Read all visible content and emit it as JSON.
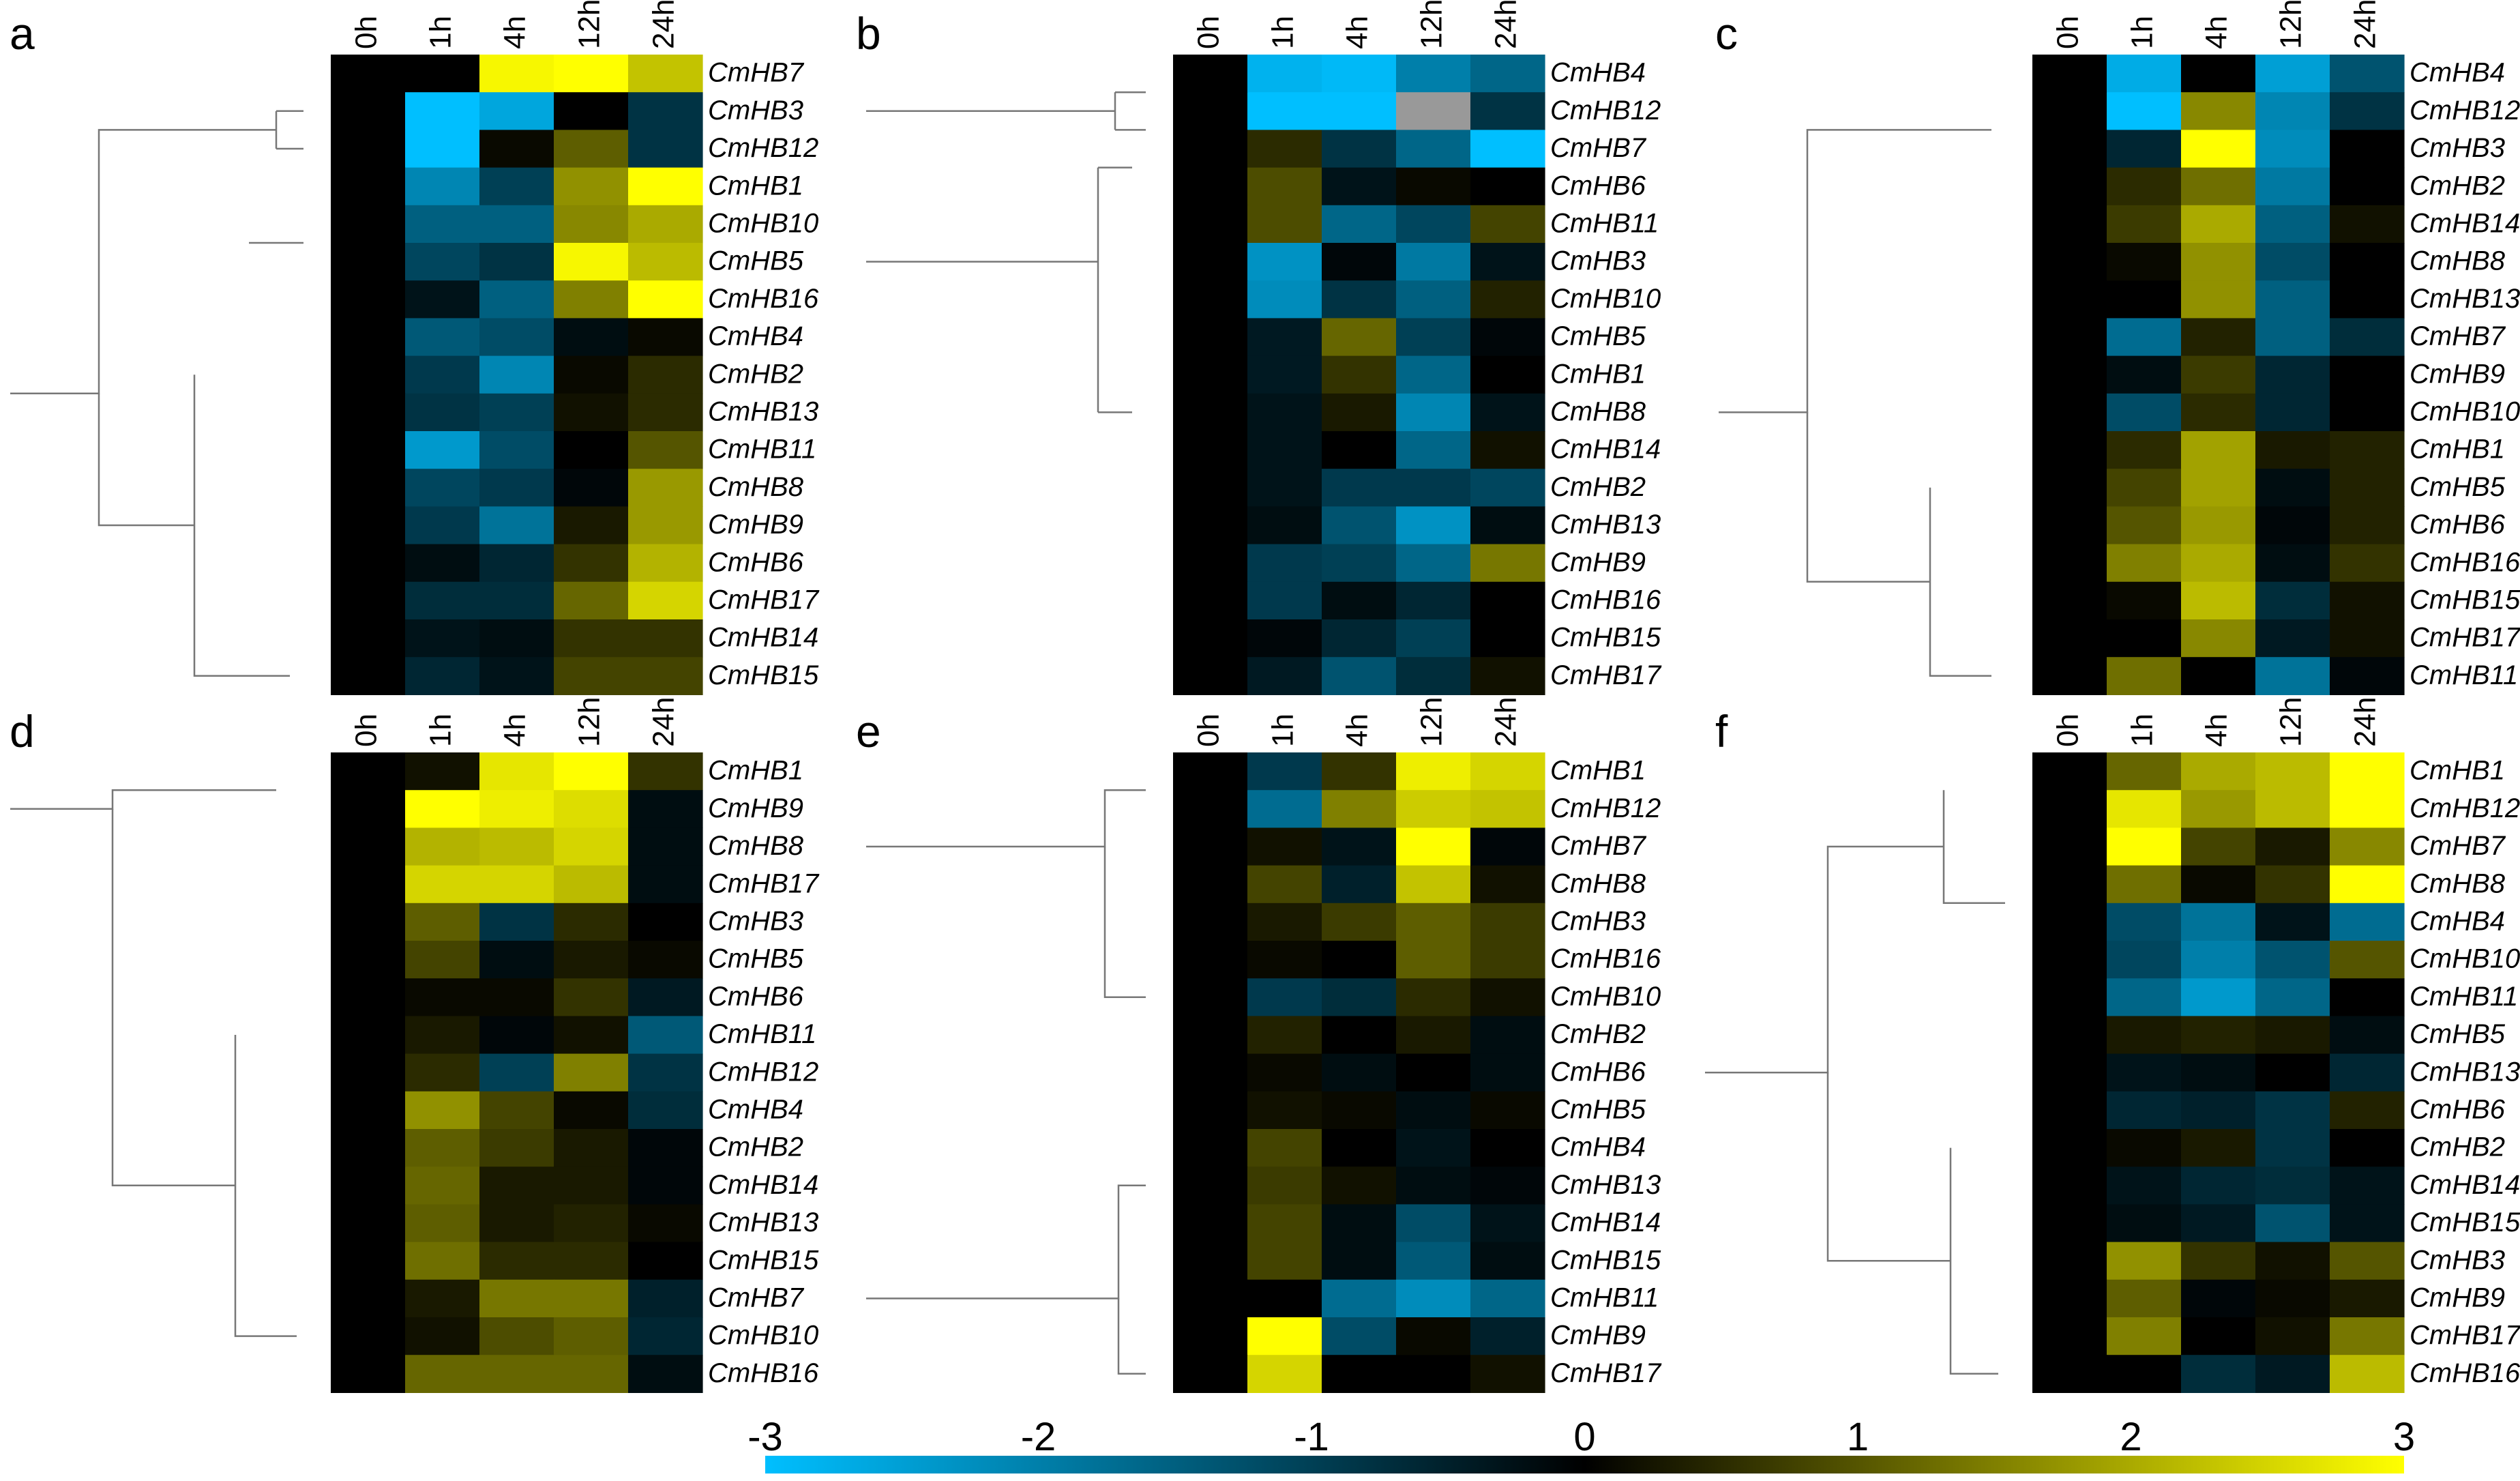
{
  "chart_data": [
    {
      "type": "heatmap",
      "panel_label": "a",
      "columns": [
        "0h",
        "1h",
        "4h",
        "12h",
        "24h"
      ],
      "rows": [
        {
          "gene": "CmHB7",
          "values": [
            0,
            0.0,
            2.9,
            3.0,
            2.3
          ]
        },
        {
          "gene": "CmHB3",
          "values": [
            0,
            -3.0,
            -2.6,
            0.0,
            -0.8
          ]
        },
        {
          "gene": "CmHB12",
          "values": [
            0,
            -3.0,
            0.1,
            1.1,
            -0.8
          ]
        },
        {
          "gene": "CmHB1",
          "values": [
            0,
            -2.1,
            -1.0,
            1.7,
            3.0
          ]
        },
        {
          "gene": "CmHB10",
          "values": [
            0,
            -1.5,
            -1.5,
            1.6,
            2.0
          ]
        },
        {
          "gene": "CmHB5",
          "values": [
            0,
            -1.1,
            -0.8,
            2.9,
            2.2
          ]
        },
        {
          "gene": "CmHB16",
          "values": [
            0,
            -0.3,
            -1.5,
            1.5,
            3.0
          ]
        },
        {
          "gene": "CmHB4",
          "values": [
            0,
            -1.4,
            -1.2,
            -0.2,
            0.1
          ]
        },
        {
          "gene": "CmHB2",
          "values": [
            0,
            -0.9,
            -2.1,
            0.1,
            0.5
          ]
        },
        {
          "gene": "CmHB13",
          "values": [
            0,
            -0.8,
            -1.0,
            0.2,
            0.5
          ]
        },
        {
          "gene": "CmHB11",
          "values": [
            0,
            -2.4,
            -1.2,
            0.0,
            1.0
          ]
        },
        {
          "gene": "CmHB8",
          "values": [
            0,
            -1.1,
            -0.9,
            -0.1,
            1.8
          ]
        },
        {
          "gene": "CmHB9",
          "values": [
            0,
            -0.9,
            -1.8,
            0.3,
            1.8
          ]
        },
        {
          "gene": "CmHB6",
          "values": [
            0,
            -0.2,
            -0.6,
            0.6,
            2.1
          ]
        },
        {
          "gene": "CmHB17",
          "values": [
            0,
            -0.7,
            -0.7,
            1.2,
            2.5
          ]
        },
        {
          "gene": "CmHB14",
          "values": [
            0,
            -0.3,
            -0.2,
            0.6,
            0.6
          ]
        },
        {
          "gene": "CmHB15",
          "values": [
            0,
            -0.6,
            -0.3,
            0.8,
            0.8
          ]
        }
      ]
    },
    {
      "type": "heatmap",
      "panel_label": "b",
      "columns": [
        "0h",
        "1h",
        "4h",
        "12h",
        "24h"
      ],
      "rows": [
        {
          "gene": "CmHB4",
          "values": [
            0,
            -2.8,
            -2.9,
            -2.0,
            -1.6
          ]
        },
        {
          "gene": "CmHB12",
          "values": [
            0,
            -3.0,
            -3.0,
            null,
            -0.8
          ]
        },
        {
          "gene": "CmHB7",
          "values": [
            0,
            0.5,
            -0.8,
            -1.6,
            -3.0
          ]
        },
        {
          "gene": "CmHB6",
          "values": [
            0,
            0.9,
            -0.3,
            0.1,
            0.0
          ]
        },
        {
          "gene": "CmHB11",
          "values": [
            0,
            0.9,
            -1.6,
            -1.1,
            0.8
          ]
        },
        {
          "gene": "CmHB3",
          "values": [
            0,
            -2.3,
            -0.1,
            -1.9,
            -0.3
          ]
        },
        {
          "gene": "CmHB10",
          "values": [
            0,
            -2.2,
            -0.8,
            -1.5,
            0.4
          ]
        },
        {
          "gene": "CmHB5",
          "values": [
            0,
            -0.4,
            1.2,
            -1.0,
            -0.1
          ]
        },
        {
          "gene": "CmHB1",
          "values": [
            0,
            -0.4,
            0.6,
            -1.6,
            0.0
          ]
        },
        {
          "gene": "CmHB8",
          "values": [
            0,
            -0.3,
            0.3,
            -2.1,
            -0.3
          ]
        },
        {
          "gene": "CmHB14",
          "values": [
            0,
            -0.3,
            0.0,
            -1.6,
            0.2
          ]
        },
        {
          "gene": "CmHB2",
          "values": [
            0,
            -0.3,
            -0.9,
            -0.9,
            -1.1
          ]
        },
        {
          "gene": "CmHB13",
          "values": [
            0,
            -0.2,
            -1.3,
            -2.3,
            -0.2
          ]
        },
        {
          "gene": "CmHB9",
          "values": [
            0,
            -0.9,
            -1.0,
            -1.6,
            1.4
          ]
        },
        {
          "gene": "CmHB16",
          "values": [
            0,
            -0.9,
            -0.2,
            -0.6,
            0.0
          ]
        },
        {
          "gene": "CmHB15",
          "values": [
            0,
            -0.1,
            -0.6,
            -1.0,
            0.0
          ]
        },
        {
          "gene": "CmHB17",
          "values": [
            0,
            -0.4,
            -1.3,
            -0.7,
            0.2
          ]
        }
      ]
    },
    {
      "type": "heatmap",
      "panel_label": "c",
      "columns": [
        "0h",
        "1h",
        "4h",
        "12h",
        "24h"
      ],
      "rows": [
        {
          "gene": "CmHB4",
          "values": [
            0,
            -2.7,
            0.0,
            -2.5,
            -1.3
          ]
        },
        {
          "gene": "CmHB12",
          "values": [
            0,
            -3.0,
            1.6,
            -2.1,
            -0.8
          ]
        },
        {
          "gene": "CmHB3",
          "values": [
            0,
            -0.6,
            3.0,
            -2.2,
            0.0
          ]
        },
        {
          "gene": "CmHB2",
          "values": [
            0,
            0.5,
            1.3,
            -1.9,
            0.0
          ]
        },
        {
          "gene": "CmHB14",
          "values": [
            0,
            0.7,
            2.0,
            -1.5,
            0.2
          ]
        },
        {
          "gene": "CmHB8",
          "values": [
            0,
            0.1,
            1.7,
            -1.2,
            0.0
          ]
        },
        {
          "gene": "CmHB13",
          "values": [
            0,
            0.0,
            1.7,
            -1.5,
            0.0
          ]
        },
        {
          "gene": "CmHB7",
          "values": [
            0,
            -1.7,
            0.4,
            -1.5,
            -0.7
          ]
        },
        {
          "gene": "CmHB9",
          "values": [
            0,
            -0.2,
            0.7,
            -0.6,
            0.0
          ]
        },
        {
          "gene": "CmHB10",
          "values": [
            0,
            -1.2,
            0.5,
            -0.6,
            0.0
          ]
        },
        {
          "gene": "CmHB1",
          "values": [
            0,
            0.5,
            1.9,
            0.3,
            0.4
          ]
        },
        {
          "gene": "CmHB5",
          "values": [
            0,
            0.8,
            1.9,
            -0.2,
            0.4
          ]
        },
        {
          "gene": "CmHB6",
          "values": [
            0,
            1.0,
            1.8,
            -0.1,
            0.4
          ]
        },
        {
          "gene": "CmHB16",
          "values": [
            0,
            1.5,
            2.0,
            -0.2,
            0.6
          ]
        },
        {
          "gene": "CmHB15",
          "values": [
            0,
            0.1,
            2.2,
            -0.7,
            0.2
          ]
        },
        {
          "gene": "CmHB17",
          "values": [
            0,
            0.0,
            1.6,
            -0.4,
            0.2
          ]
        },
        {
          "gene": "CmHB11",
          "values": [
            0,
            1.3,
            0.0,
            -1.8,
            -0.1
          ]
        }
      ]
    },
    {
      "type": "heatmap",
      "panel_label": "d",
      "columns": [
        "0h",
        "1h",
        "4h",
        "12h",
        "24h"
      ],
      "rows": [
        {
          "gene": "CmHB1",
          "values": [
            0,
            0.2,
            2.7,
            3.0,
            0.6
          ]
        },
        {
          "gene": "CmHB9",
          "values": [
            0,
            3.0,
            2.8,
            2.6,
            -0.2
          ]
        },
        {
          "gene": "CmHB8",
          "values": [
            0,
            2.1,
            2.2,
            2.5,
            -0.2
          ]
        },
        {
          "gene": "CmHB17",
          "values": [
            0,
            2.5,
            2.5,
            2.2,
            -0.2
          ]
        },
        {
          "gene": "CmHB3",
          "values": [
            0,
            1.1,
            -0.8,
            0.5,
            0.0
          ]
        },
        {
          "gene": "CmHB5",
          "values": [
            0,
            0.8,
            -0.2,
            0.3,
            0.1
          ]
        },
        {
          "gene": "CmHB6",
          "values": [
            0,
            0.1,
            0.1,
            0.6,
            -0.4
          ]
        },
        {
          "gene": "CmHB11",
          "values": [
            0,
            0.3,
            -0.1,
            0.2,
            -1.4
          ]
        },
        {
          "gene": "CmHB12",
          "values": [
            0,
            0.5,
            -1.0,
            1.5,
            -0.8
          ]
        },
        {
          "gene": "CmHB4",
          "values": [
            0,
            1.7,
            0.8,
            0.1,
            -0.7
          ]
        },
        {
          "gene": "CmHB2",
          "values": [
            0,
            1.1,
            0.7,
            0.3,
            -0.1
          ]
        },
        {
          "gene": "CmHB14",
          "values": [
            0,
            1.2,
            0.3,
            0.3,
            -0.1
          ]
        },
        {
          "gene": "CmHB13",
          "values": [
            0,
            1.1,
            0.3,
            0.4,
            0.1
          ]
        },
        {
          "gene": "CmHB15",
          "values": [
            0,
            1.3,
            0.5,
            0.5,
            0.0
          ]
        },
        {
          "gene": "CmHB7",
          "values": [
            0,
            0.3,
            1.4,
            1.4,
            -0.5
          ]
        },
        {
          "gene": "CmHB10",
          "values": [
            0,
            0.2,
            0.9,
            1.1,
            -0.6
          ]
        },
        {
          "gene": "CmHB16",
          "values": [
            0,
            1.2,
            1.2,
            1.2,
            -0.2
          ]
        }
      ]
    },
    {
      "type": "heatmap",
      "panel_label": "e",
      "columns": [
        "0h",
        "1h",
        "4h",
        "12h",
        "24h"
      ],
      "rows": [
        {
          "gene": "CmHB1",
          "values": [
            0,
            -0.9,
            0.6,
            2.8,
            2.5
          ]
        },
        {
          "gene": "CmHB12",
          "values": [
            0,
            -1.7,
            1.5,
            2.4,
            2.3
          ]
        },
        {
          "gene": "CmHB7",
          "values": [
            0,
            0.2,
            -0.3,
            3.0,
            -0.1
          ]
        },
        {
          "gene": "CmHB8",
          "values": [
            0,
            0.8,
            -0.5,
            2.3,
            0.2
          ]
        },
        {
          "gene": "CmHB3",
          "values": [
            0,
            0.3,
            0.7,
            1.1,
            0.7
          ]
        },
        {
          "gene": "CmHB16",
          "values": [
            0,
            0.1,
            0.0,
            1.1,
            0.7
          ]
        },
        {
          "gene": "CmHB10",
          "values": [
            0,
            -0.9,
            -0.7,
            0.5,
            0.2
          ]
        },
        {
          "gene": "CmHB2",
          "values": [
            0,
            0.4,
            0.0,
            0.3,
            -0.2
          ]
        },
        {
          "gene": "CmHB6",
          "values": [
            0,
            0.1,
            -0.2,
            0.0,
            -0.2
          ]
        },
        {
          "gene": "CmHB5",
          "values": [
            0,
            0.2,
            0.1,
            -0.2,
            0.1
          ]
        },
        {
          "gene": "CmHB4",
          "values": [
            0,
            0.8,
            0.0,
            -0.3,
            0.0
          ]
        },
        {
          "gene": "CmHB13",
          "values": [
            0,
            0.7,
            0.2,
            -0.2,
            -0.1
          ]
        },
        {
          "gene": "CmHB14",
          "values": [
            0,
            0.8,
            -0.2,
            -1.2,
            -0.3
          ]
        },
        {
          "gene": "CmHB15",
          "values": [
            0,
            0.8,
            -0.2,
            -1.4,
            -0.2
          ]
        },
        {
          "gene": "CmHB11",
          "values": [
            0,
            0.0,
            -1.7,
            -2.2,
            -1.6
          ]
        },
        {
          "gene": "CmHB9",
          "values": [
            0,
            3.0,
            -1.2,
            0.1,
            -0.5
          ]
        },
        {
          "gene": "CmHB17",
          "values": [
            0,
            2.5,
            0.0,
            0.0,
            0.2
          ]
        }
      ]
    },
    {
      "type": "heatmap",
      "panel_label": "f",
      "columns": [
        "0h",
        "1h",
        "4h",
        "12h",
        "24h"
      ],
      "rows": [
        {
          "gene": "CmHB1",
          "values": [
            0,
            1.2,
            2.0,
            2.2,
            3.0
          ]
        },
        {
          "gene": "CmHB12",
          "values": [
            0,
            2.7,
            1.8,
            2.2,
            3.0
          ]
        },
        {
          "gene": "CmHB7",
          "values": [
            0,
            3.0,
            0.8,
            0.3,
            1.6
          ]
        },
        {
          "gene": "CmHB8",
          "values": [
            0,
            1.3,
            0.1,
            0.6,
            3.0
          ]
        },
        {
          "gene": "CmHB4",
          "values": [
            0,
            -1.2,
            -1.8,
            -0.3,
            -1.7
          ]
        },
        {
          "gene": "CmHB10",
          "values": [
            0,
            -1.1,
            -2.0,
            -1.3,
            1.0
          ]
        },
        {
          "gene": "CmHB11",
          "values": [
            0,
            -1.6,
            -2.4,
            -1.6,
            0.0
          ]
        },
        {
          "gene": "CmHB5",
          "values": [
            0,
            0.3,
            0.4,
            0.3,
            -0.2
          ]
        },
        {
          "gene": "CmHB13",
          "values": [
            0,
            -0.3,
            -0.2,
            0.0,
            -0.6
          ]
        },
        {
          "gene": "CmHB6",
          "values": [
            0,
            -0.6,
            -0.5,
            -0.8,
            0.4
          ]
        },
        {
          "gene": "CmHB2",
          "values": [
            0,
            0.1,
            0.3,
            -0.8,
            0.0
          ]
        },
        {
          "gene": "CmHB14",
          "values": [
            0,
            -0.3,
            -0.6,
            -0.7,
            -0.3
          ]
        },
        {
          "gene": "CmHB15",
          "values": [
            0,
            -0.2,
            -0.4,
            -1.3,
            -0.3
          ]
        },
        {
          "gene": "CmHB3",
          "values": [
            0,
            1.7,
            0.6,
            0.2,
            1.0
          ]
        },
        {
          "gene": "CmHB9",
          "values": [
            0,
            1.1,
            -0.1,
            0.1,
            0.3
          ]
        },
        {
          "gene": "CmHB17",
          "values": [
            0,
            1.5,
            0.0,
            0.2,
            1.4
          ]
        },
        {
          "gene": "CmHB16",
          "values": [
            0,
            0.0,
            -0.7,
            -0.4,
            2.2
          ]
        }
      ]
    }
  ],
  "colorbar": {
    "range": [
      -3,
      3
    ],
    "ticks": [
      "-3",
      "-2",
      "-1",
      "0",
      "1",
      "2",
      "3"
    ],
    "color_low": "#00BFFF",
    "color_mid": "#000000",
    "color_high": "#FFFF00"
  },
  "missing_color": "#999999"
}
